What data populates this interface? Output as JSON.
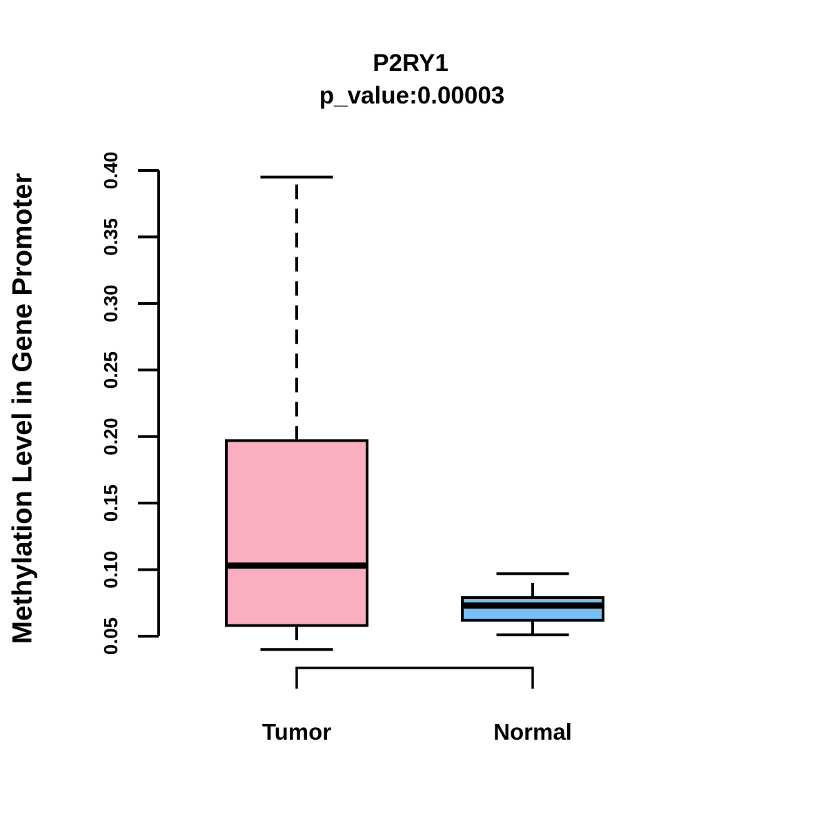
{
  "figure": {
    "title": "P2RY1",
    "subtitle": "p_value:0.00003",
    "ylabel": "Methylation Level in Gene Promoter"
  },
  "chart_data": {
    "type": "boxplot",
    "title": "P2RY1",
    "subtitle": "p_value:0.00003",
    "xlabel": "",
    "ylabel": "Methylation Level in Gene Promoter",
    "categories": [
      "Tumor",
      "Normal"
    ],
    "yticks": [
      0.05,
      0.1,
      0.15,
      0.2,
      0.25,
      0.3,
      0.35,
      0.4
    ],
    "ylim": [
      0.04,
      0.4
    ],
    "grid": false,
    "legend_position": "none",
    "series": [
      {
        "name": "Tumor",
        "box_color": "#FCAEC1",
        "whisker_low": 0.04,
        "q1": 0.058,
        "median": 0.103,
        "q3": 0.197,
        "whisker_high": 0.395
      },
      {
        "name": "Normal",
        "box_color": "#79BFF4",
        "whisker_low": 0.051,
        "q1": 0.062,
        "median": 0.073,
        "q3": 0.079,
        "whisker_high": 0.097
      }
    ],
    "annotations": {
      "comparison_bracket": {
        "between": [
          "Tumor",
          "Normal"
        ]
      }
    },
    "colors": {
      "stroke": "#000000",
      "background": "#FFFFFF"
    }
  }
}
